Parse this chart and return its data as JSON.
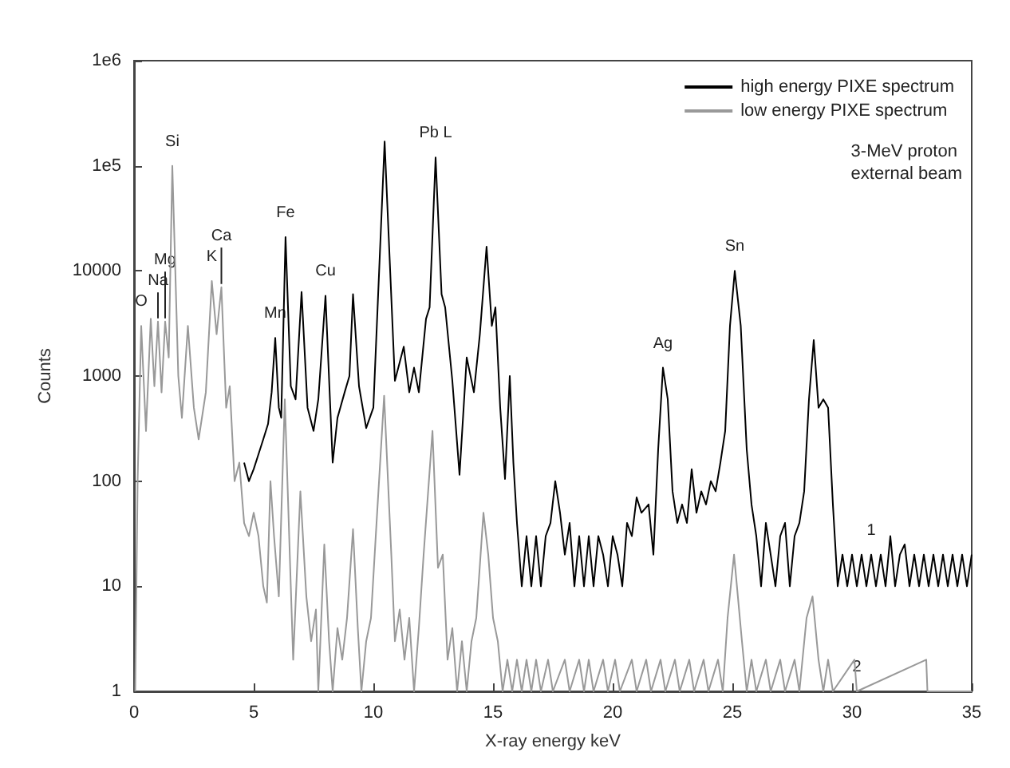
{
  "chart_data": {
    "type": "line",
    "xlabel": "X-ray energy keV",
    "ylabel": "Counts",
    "log": "y",
    "xlim": [
      0,
      35
    ],
    "xticks": [
      0,
      5,
      10,
      15,
      20,
      25,
      30,
      35
    ],
    "ylim": [
      1,
      1000000
    ],
    "yticks": [
      1,
      10,
      100,
      1000,
      10000,
      {
        "value": 100000,
        "label": "1e5"
      },
      {
        "value": 1000000,
        "label": "1e6"
      }
    ],
    "grid": false,
    "legend": "top right",
    "marker": "none",
    "line_style": "solid",
    "series": [
      {
        "name": "high energy PIXE spectrum",
        "color": "#000000",
        "x": [
          4.6,
          4.8,
          5.0,
          5.2,
          5.4,
          5.6,
          5.75,
          5.9,
          6.05,
          6.15,
          6.33,
          6.55,
          6.75,
          7.0,
          7.25,
          7.5,
          7.7,
          8.0,
          8.3,
          8.5,
          8.8,
          9.0,
          9.15,
          9.4,
          9.7,
          10.0,
          10.47,
          10.9,
          11.27,
          11.5,
          11.7,
          11.9,
          12.2,
          12.35,
          12.6,
          12.85,
          13.0,
          13.3,
          13.6,
          13.9,
          14.2,
          14.45,
          14.73,
          14.95,
          15.1,
          15.3,
          15.5,
          15.7,
          15.85,
          16.0,
          16.2,
          16.4,
          16.6,
          16.8,
          17.0,
          17.2,
          17.4,
          17.6,
          17.8,
          18.0,
          18.2,
          18.4,
          18.6,
          18.8,
          19.0,
          19.2,
          19.4,
          19.6,
          19.8,
          20.0,
          20.2,
          20.4,
          20.6,
          20.8,
          21.0,
          21.2,
          21.5,
          21.7,
          21.9,
          22.1,
          22.3,
          22.5,
          22.7,
          22.9,
          23.1,
          23.3,
          23.5,
          23.7,
          23.9,
          24.1,
          24.3,
          24.5,
          24.7,
          24.9,
          25.1,
          25.35,
          25.6,
          25.8,
          26.0,
          26.2,
          26.4,
          26.6,
          26.8,
          27.0,
          27.2,
          27.4,
          27.6,
          27.8,
          28.0,
          28.2,
          28.4,
          28.6,
          28.8,
          29.0,
          29.2,
          29.4,
          29.6,
          29.8,
          30.0,
          30.2,
          30.4,
          30.6,
          30.8,
          31.0,
          31.2,
          31.4,
          31.6,
          31.8,
          32.0,
          32.2,
          32.4,
          32.6,
          32.8,
          33.0,
          33.2,
          33.4,
          33.6,
          33.8,
          34.0,
          34.2,
          34.4,
          34.6,
          34.8,
          35.0
        ],
        "values": [
          150,
          100,
          130,
          180,
          250,
          350,
          700,
          2300,
          500,
          400,
          21000,
          800,
          600,
          6300,
          500,
          300,
          600,
          5800,
          150,
          400,
          700,
          1000,
          6000,
          800,
          320,
          500,
          170000,
          900,
          1900,
          700,
          1200,
          700,
          3500,
          4500,
          120000,
          6000,
          4500,
          900,
          115,
          1500,
          700,
          2500,
          17000,
          3000,
          4500,
          500,
          105,
          1000,
          150,
          40,
          10,
          30,
          10,
          30,
          10,
          30,
          40,
          100,
          50,
          20,
          40,
          10,
          30,
          10,
          30,
          10,
          30,
          20,
          10,
          30,
          20,
          10,
          40,
          30,
          70,
          50,
          60,
          20,
          200,
          1200,
          600,
          80,
          40,
          60,
          40,
          130,
          50,
          80,
          60,
          100,
          80,
          150,
          300,
          3000,
          10000,
          3000,
          200,
          60,
          30,
          10,
          40,
          20,
          10,
          30,
          40,
          10,
          30,
          40,
          80,
          600,
          2200,
          500,
          600,
          500,
          60,
          10,
          20,
          10,
          20,
          10,
          20,
          10,
          20,
          10,
          20,
          10,
          30,
          10,
          20,
          25,
          10,
          20,
          10,
          20,
          10,
          20,
          10,
          20,
          10,
          20,
          10,
          20,
          10,
          20
        ]
      },
      {
        "name": "low energy PIXE spectrum",
        "color": "#999999",
        "x": [
          0.05,
          0.15,
          0.3,
          0.5,
          0.7,
          0.85,
          1.0,
          1.15,
          1.3,
          1.45,
          1.6,
          1.85,
          2.0,
          2.25,
          2.5,
          2.7,
          3.0,
          3.25,
          3.45,
          3.65,
          3.85,
          4.0,
          4.2,
          4.4,
          4.6,
          4.8,
          5.0,
          5.2,
          5.4,
          5.55,
          5.7,
          5.85,
          6.05,
          6.3,
          6.55,
          6.65,
          6.95,
          7.2,
          7.4,
          7.6,
          7.7,
          7.95,
          8.15,
          8.3,
          8.5,
          8.7,
          8.9,
          9.15,
          9.35,
          9.5,
          9.7,
          9.9,
          10.1,
          10.45,
          10.75,
          10.9,
          11.1,
          11.3,
          11.5,
          11.7,
          11.9,
          12.1,
          12.47,
          12.7,
          12.9,
          13.1,
          13.3,
          13.5,
          13.7,
          13.9,
          14.1,
          14.3,
          14.6,
          14.8,
          15.0,
          15.2,
          15.4,
          15.6,
          15.8,
          16.0,
          16.2,
          16.4,
          16.6,
          16.8,
          17.0,
          17.3,
          17.5,
          18.0,
          18.2,
          18.6,
          18.8,
          19.0,
          19.2,
          19.6,
          19.8,
          20.1,
          20.3,
          20.8,
          21.0,
          21.4,
          21.6,
          22.0,
          22.2,
          22.6,
          22.8,
          23.2,
          23.4,
          23.8,
          24.0,
          24.4,
          24.6,
          24.8,
          25.07,
          25.4,
          25.6,
          25.8,
          26.0,
          26.4,
          26.6,
          27.0,
          27.2,
          27.6,
          27.8,
          28.1,
          28.35,
          28.6,
          28.8,
          29.0,
          29.2,
          30.1,
          30.2,
          33.1,
          33.15,
          35.0
        ],
        "values": [
          1,
          100,
          3000,
          300,
          3500,
          800,
          3300,
          700,
          3300,
          1500,
          100000,
          1000,
          400,
          3000,
          500,
          250,
          700,
          8000,
          2500,
          7000,
          500,
          800,
          100,
          150,
          40,
          30,
          50,
          30,
          10,
          7,
          100,
          30,
          8,
          600,
          10,
          2,
          80,
          8,
          3,
          6,
          1,
          25,
          3,
          1,
          4,
          2,
          5,
          35,
          4,
          1,
          3,
          5,
          30,
          650,
          20,
          3,
          6,
          2,
          5,
          1,
          4,
          20,
          300,
          15,
          20,
          2,
          4,
          1,
          3,
          1,
          3,
          5,
          50,
          20,
          5,
          3,
          1,
          2,
          1,
          2,
          1,
          2,
          1,
          2,
          1,
          2,
          1,
          2,
          1,
          2,
          1,
          2,
          1,
          2,
          1,
          2,
          1,
          2,
          1,
          2,
          1,
          2,
          1,
          2,
          1,
          2,
          1,
          2,
          1,
          2,
          1,
          5,
          20,
          3,
          1,
          2,
          1,
          2,
          1,
          2,
          1,
          2,
          1,
          5,
          8,
          2,
          1,
          2,
          1,
          2,
          1,
          2,
          1,
          1
        ]
      }
    ],
    "annotations": [
      {
        "text": "O",
        "x": 0.3,
        "y": 3000
      },
      {
        "text": "Na",
        "x": 1.0,
        "y": 3300
      },
      {
        "text": "Mg",
        "x": 1.3,
        "y": 3300
      },
      {
        "text": "Si",
        "x": 1.6,
        "y": 100000
      },
      {
        "text": "K",
        "x": 3.25,
        "y": 8000
      },
      {
        "text": "Ca",
        "x": 3.65,
        "y": 7000
      },
      {
        "text": "Mn",
        "x": 5.9,
        "y": 2300
      },
      {
        "text": "Fe",
        "x": 6.33,
        "y": 21000
      },
      {
        "text": "Cu",
        "x": 8.0,
        "y": 5800
      },
      {
        "text": "Pb L",
        "x": 12.6,
        "y": 120000
      },
      {
        "text": "Ag",
        "x": 22.1,
        "y": 1200
      },
      {
        "text": "Sn",
        "x": 25.1,
        "y": 10000
      },
      {
        "text": "1",
        "x": 30.8,
        "y": 20
      },
      {
        "text": "2",
        "x": 30.2,
        "y": 1
      },
      "3-MeV proton\nexternal beam"
    ]
  }
}
